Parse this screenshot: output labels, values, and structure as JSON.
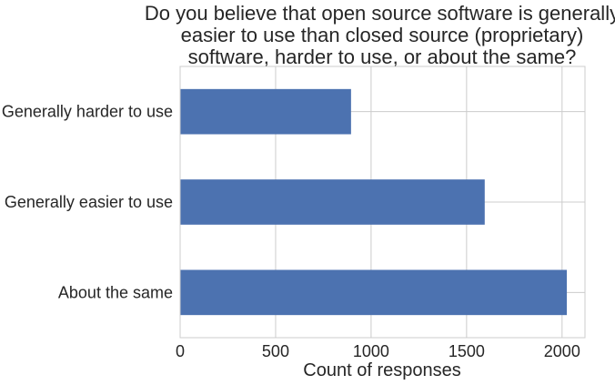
{
  "chart_data": {
    "type": "bar",
    "orientation": "horizontal",
    "title_lines": [
      "Do you believe that open source software is generally",
      "easier to use than closed source (proprietary)",
      "software, harder to use, or about the same?"
    ],
    "categories": [
      "Generally harder to use",
      "Generally easier to use",
      "About the same"
    ],
    "values": [
      895,
      1595,
      2025
    ],
    "xlabel": "Count of responses",
    "ylabel": "",
    "xlim": [
      0,
      2120
    ],
    "xticks": [
      0,
      500,
      1000,
      1500,
      2000
    ],
    "xtick_labels": [
      "0",
      "500",
      "1000",
      "1500",
      "2000"
    ],
    "grid": true,
    "bar_color": "#4c72b0",
    "grid_color": "#cccccc"
  }
}
